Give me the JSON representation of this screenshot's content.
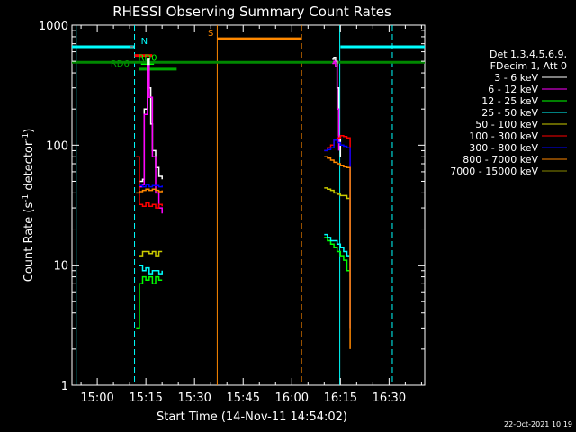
{
  "chart_data": {
    "type": "line",
    "title": "RHESSI Observing Summary Count Rates",
    "xlabel": "Start Time (14-Nov-11 14:54:02)",
    "ylabel_main": "Count Rate (s",
    "ylabel_sup1": "-1",
    "ylabel_mid": " detector",
    "ylabel_sup2": "-1",
    "ylabel_end": ")",
    "ylog": true,
    "ylim": [
      1,
      1000
    ],
    "xlim_minutes": [
      -7.8,
      101
    ],
    "x_ticks": [
      {
        "m": 0,
        "label": "15:00"
      },
      {
        "m": 15,
        "label": "15:15"
      },
      {
        "m": 30,
        "label": "15:30"
      },
      {
        "m": 45,
        "label": "15:45"
      },
      {
        "m": 60,
        "label": "16:00"
      },
      {
        "m": 75,
        "label": "16:15"
      },
      {
        "m": 90,
        "label": "16:30"
      }
    ],
    "y_ticks": [
      {
        "v": 1,
        "label": "1"
      },
      {
        "v": 10,
        "label": "10"
      },
      {
        "v": 100,
        "label": "100"
      },
      {
        "v": 1000,
        "label": "1000"
      }
    ],
    "legend_header": [
      "Det 1,3,4,5,6,9,",
      "FDecim 1, Att 0"
    ],
    "series": [
      {
        "name": "3 - 6 keV",
        "color": "#ffffff",
        "x": [
          13,
          14,
          14.5,
          15.5,
          16,
          16.5,
          17,
          18,
          19,
          20,
          72.5,
          73,
          73.5,
          74,
          74.5,
          75
        ],
        "values": [
          50,
          52,
          200,
          520,
          300,
          150,
          90,
          65,
          55,
          52,
          520,
          540,
          500,
          300,
          120,
          80
        ]
      },
      {
        "name": "6 - 12 keV",
        "color": "#ff00ff",
        "x": [
          13,
          14,
          14.5,
          15.5,
          16,
          17,
          18,
          19,
          20,
          72.5,
          73,
          73.5,
          74,
          74.5
        ],
        "values": [
          45,
          47,
          180,
          460,
          250,
          80,
          40,
          30,
          27,
          480,
          500,
          450,
          200,
          90
        ]
      },
      {
        "name": "12 - 25 keV",
        "color": "#00ff00",
        "x": [
          12,
          13,
          14,
          15,
          16,
          17,
          18,
          19,
          20,
          70,
          71,
          72,
          73,
          74,
          75,
          76,
          77,
          78
        ],
        "values": [
          3,
          7,
          8,
          7.5,
          8,
          7,
          8,
          7.5,
          7.5,
          17,
          16,
          15,
          14,
          13,
          12,
          11,
          9,
          8
        ]
      },
      {
        "name": "25 - 50 keV",
        "color": "#00ffff",
        "x": [
          13,
          14,
          15,
          16,
          17,
          18,
          19,
          20,
          70,
          71,
          72,
          73,
          74,
          75,
          76,
          77,
          78
        ],
        "values": [
          10,
          9,
          9.5,
          8.5,
          9,
          9,
          8.5,
          9,
          18,
          17,
          16,
          16,
          15,
          14,
          13,
          12,
          10
        ]
      },
      {
        "name": "50 - 100 keV",
        "color": "#cccc00",
        "x": [
          13,
          14,
          15,
          16,
          17,
          18,
          19,
          20,
          70,
          71,
          72,
          73,
          74,
          75,
          76,
          77,
          78
        ],
        "values": [
          12,
          13,
          13,
          12.5,
          13,
          12,
          13,
          13,
          44,
          43,
          42,
          40,
          39,
          38,
          38,
          36,
          3
        ]
      },
      {
        "name": "100 - 300 keV",
        "color": "#ff0000",
        "x": [
          12,
          13,
          14,
          15,
          16,
          17,
          18,
          19,
          20,
          70,
          71,
          72,
          73,
          74,
          75,
          76,
          77,
          78
        ],
        "values": [
          80,
          32,
          31,
          33,
          31,
          32,
          30,
          32,
          31,
          90,
          95,
          100,
          110,
          115,
          120,
          118,
          115,
          3
        ]
      },
      {
        "name": "300 - 800 keV",
        "color": "#0000ff",
        "x": [
          13,
          14,
          15,
          16,
          17,
          18,
          19,
          20,
          70,
          71,
          72,
          73,
          74,
          75,
          76,
          77,
          78
        ],
        "values": [
          46,
          45,
          47,
          45,
          46,
          46,
          45,
          46,
          90,
          92,
          95,
          110,
          105,
          100,
          98,
          95,
          3
        ]
      },
      {
        "name": "800 - 7000 keV",
        "color": "#ff8800",
        "x": [
          12,
          13,
          14,
          15,
          16,
          17,
          18,
          19,
          20,
          70,
          71,
          72,
          73,
          74,
          75,
          76,
          77,
          78
        ],
        "values": [
          40,
          41,
          42,
          43,
          42,
          43,
          42,
          41,
          42,
          80,
          78,
          75,
          72,
          70,
          68,
          66,
          65,
          2
        ]
      },
      {
        "name": "7000 - 15000 keV",
        "color": "#888800",
        "x": [],
        "values": []
      }
    ],
    "flag_lines": [
      {
        "label": "N",
        "color": "#00ffff",
        "y": 660,
        "x_start": -7.8,
        "x_end": 11.5,
        "label_m": 14.5
      },
      {
        "label": "N",
        "color": "#00ffff",
        "y": 660,
        "x_start": 75,
        "x_end": 101,
        "label_m": null
      },
      {
        "label": "S",
        "color": "#ff8800",
        "y": 770,
        "x_start": 37,
        "x_end": 63,
        "label_m": 35
      },
      {
        "label": "F",
        "color": "#ff0000",
        "y": 560,
        "x_start": 11.5,
        "x_end": 17,
        "label_m": 10.5
      },
      {
        "label": "RD0",
        "color": "#00ff00",
        "y": 480,
        "x_start": 13.5,
        "x_end": 17.5,
        "label_m": 15.5
      },
      {
        "label": "RD6",
        "color": "#00aa00",
        "y": 430,
        "x_start": 13,
        "x_end": 24.5,
        "label_m": 7
      },
      {
        "label": "",
        "color": "#008800",
        "y": 490,
        "x_start": -7.8,
        "x_end": 101,
        "label_m": null
      }
    ],
    "vertical_lines": [
      {
        "m": 11.5,
        "color": "#00ffff",
        "style": "dashed"
      },
      {
        "m": 37,
        "color": "#ff8800",
        "style": "solid"
      },
      {
        "m": 63,
        "color": "#ff8800",
        "style": "dashed"
      },
      {
        "m": 74.8,
        "color": "#00ffff",
        "style": "solid"
      },
      {
        "m": 91,
        "color": "#00ffff",
        "style": "dashed"
      },
      {
        "m": -6.5,
        "color": "#00ffff",
        "style": "solid"
      }
    ],
    "timestamp": "22-Oct-2021 10:19"
  }
}
